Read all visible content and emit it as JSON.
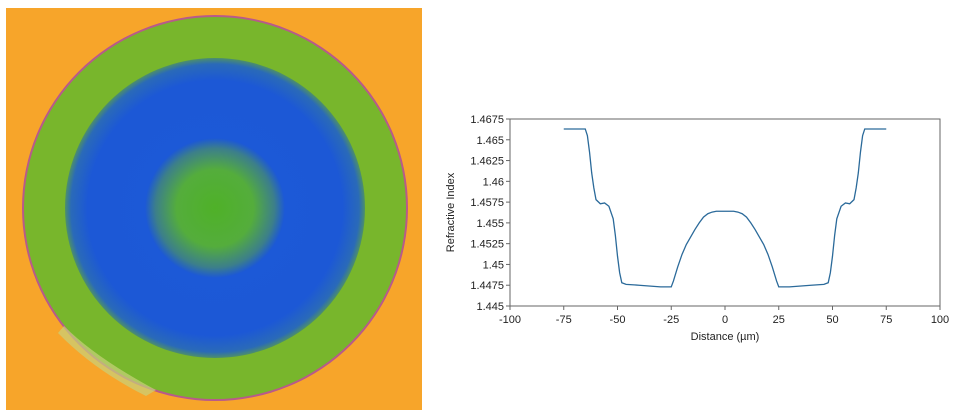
{
  "image": {
    "subject": "fiber cross-section refractive index map",
    "colors": {
      "background": "#f7a52a",
      "cladding": "#76b52a",
      "core_ring": "#1c58d6",
      "center": "#58b132",
      "rim": "#b85a8a"
    }
  },
  "chart_data": {
    "type": "line",
    "title": "",
    "xlabel": "Distance (µm)",
    "ylabel": "Refractive Index",
    "xlim": [
      -100,
      100
    ],
    "ylim": [
      1.445,
      1.4675
    ],
    "x_ticks": [
      "-100",
      "-75",
      "-50",
      "-25",
      "0",
      "25",
      "50",
      "75",
      "100"
    ],
    "y_ticks": [
      "1.4675",
      "1.465",
      "1.4625",
      "1.46",
      "1.4575",
      "1.455",
      "1.4525",
      "1.45",
      "1.4475",
      "1.445"
    ],
    "grid": false,
    "line_color": "#2b6a9a",
    "series": [
      {
        "x": [
          -75,
          -65,
          -64,
          -63,
          -62,
          -61,
          -60,
          -58,
          -56,
          -54,
          -52,
          -51,
          -50,
          -49,
          -48,
          -46,
          -40,
          -30,
          -25,
          -24,
          -22,
          -20,
          -18,
          -16,
          -14,
          -12,
          -10,
          -8,
          -6,
          -4,
          -2,
          0,
          2,
          4,
          6,
          8,
          10,
          12,
          14,
          16,
          18,
          20,
          22,
          24,
          25,
          30,
          40,
          46,
          48,
          49,
          50,
          51,
          52,
          54,
          56,
          58,
          60,
          61,
          62,
          63,
          64,
          65,
          75
        ],
        "y": [
          1.4663,
          1.4663,
          1.4655,
          1.4635,
          1.461,
          1.4592,
          1.4578,
          1.4573,
          1.4574,
          1.457,
          1.4555,
          1.4535,
          1.451,
          1.449,
          1.4478,
          1.4476,
          1.4475,
          1.4473,
          1.4473,
          1.448,
          1.4497,
          1.4512,
          1.4524,
          1.4533,
          1.4542,
          1.455,
          1.4557,
          1.4561,
          1.4563,
          1.4564,
          1.4564,
          1.4564,
          1.4564,
          1.4564,
          1.4563,
          1.4561,
          1.4557,
          1.455,
          1.4542,
          1.4533,
          1.4524,
          1.4512,
          1.4497,
          1.448,
          1.4473,
          1.4473,
          1.4475,
          1.4476,
          1.4478,
          1.449,
          1.451,
          1.4535,
          1.4555,
          1.457,
          1.4574,
          1.4573,
          1.4578,
          1.4592,
          1.461,
          1.4635,
          1.4655,
          1.4663,
          1.4663
        ]
      }
    ]
  }
}
